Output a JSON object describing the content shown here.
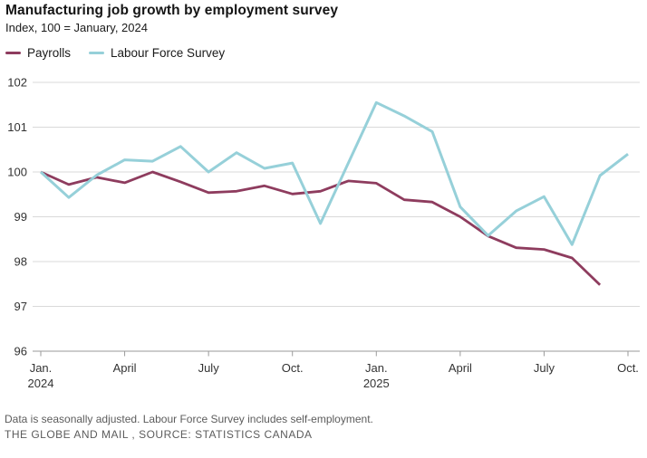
{
  "header": {
    "title": "Manufacturing job growth by employment survey",
    "subtitle": "Index, 100 = January, 2024"
  },
  "legend": [
    {
      "label": "Payrolls",
      "color": "#8e3c5e"
    },
    {
      "label": "Labour Force Survey",
      "color": "#96d0d9"
    }
  ],
  "chart_data": {
    "type": "line",
    "title": "Manufacturing job growth by employment survey",
    "subtitle": "Index, 100 = January, 2024",
    "x": [
      "2024-01",
      "2024-02",
      "2024-03",
      "2024-04",
      "2024-05",
      "2024-06",
      "2024-07",
      "2024-08",
      "2024-09",
      "2024-10",
      "2024-11",
      "2024-12",
      "2025-01",
      "2025-02",
      "2025-03",
      "2025-04",
      "2025-05",
      "2025-06",
      "2025-07",
      "2025-08",
      "2025-09",
      "2025-10"
    ],
    "series": [
      {
        "name": "Payrolls",
        "color": "#8e3c5e",
        "stroke_width": 2.8,
        "values": [
          100,
          99.72,
          99.88,
          99.76,
          100,
          99.78,
          99.54,
          99.57,
          99.69,
          99.51,
          99.57,
          99.8,
          99.75,
          99.38,
          99.33,
          99.0,
          98.57,
          98.31,
          98.27,
          98.08,
          97.48,
          null
        ]
      },
      {
        "name": "Labour Force Survey",
        "color": "#96d0d9",
        "stroke_width": 3,
        "values": [
          100,
          99.43,
          99.93,
          100.27,
          100.24,
          100.57,
          100.0,
          100.43,
          100.08,
          100.2,
          98.85,
          100.2,
          101.55,
          101.25,
          100.9,
          99.22,
          98.58,
          99.13,
          99.45,
          98.38,
          99.92,
          100.4
        ]
      }
    ],
    "ylim": [
      96,
      102
    ],
    "yticks": [
      96,
      97,
      98,
      99,
      100,
      101,
      102
    ],
    "xticks": [
      {
        "index": 0,
        "label": "Jan.",
        "year": "2024"
      },
      {
        "index": 3,
        "label": "April"
      },
      {
        "index": 6,
        "label": "July"
      },
      {
        "index": 9,
        "label": "Oct."
      },
      {
        "index": 12,
        "label": "Jan.",
        "year": "2025"
      },
      {
        "index": 15,
        "label": "April"
      },
      {
        "index": 18,
        "label": "July"
      },
      {
        "index": 21,
        "label": "Oct."
      }
    ],
    "grid": true,
    "legend_position": "top-left",
    "axis_color": "#9a9a9a",
    "grid_color": "#d9d9d9",
    "tick_label_color": "#333333"
  },
  "footer": {
    "note": "Data is seasonally adjusted. Labour Force Survey includes self-employment.",
    "credit": "THE GLOBE AND MAIL , SOURCE: STATISTICS CANADA"
  }
}
